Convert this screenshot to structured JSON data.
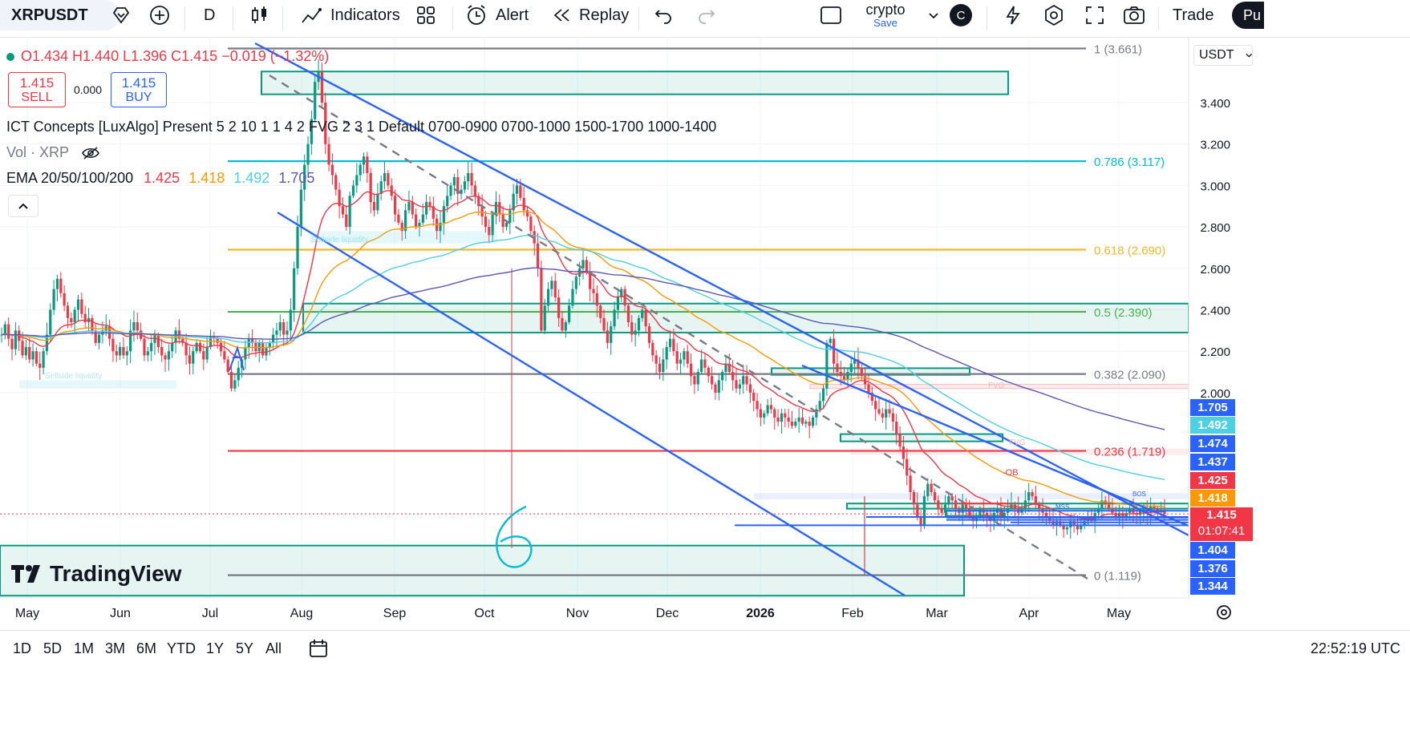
{
  "toolbar": {
    "symbol": "XRPUSDT",
    "interval": "D",
    "indicators": "Indicators",
    "alert": "Alert",
    "replay": "Replay",
    "layout_name": "crypto",
    "layout_sub": "Save",
    "profile_initial": "C",
    "trade": "Trade",
    "publish": "Pu"
  },
  "legend": {
    "ohlc": "O1.434 H1.440 L1.396 C1.415 −0.019 (−1.32%)",
    "sell_price": "1.415",
    "sell_label": "SELL",
    "spread": "0.000",
    "buy_price": "1.415",
    "buy_label": "BUY",
    "ict": "ICT Concepts [LuxAlgo] Present 5 2 10 1 1 4 2 FVG 2 3 1 Default 0700-0900 0700-1000 1500-1700 1000-1400",
    "vol": "Vol · XRP",
    "ema_label": "EMA 20/50/100/200",
    "ema20": "1.425",
    "ema50": "1.418",
    "ema100": "1.492",
    "ema200": "1.705"
  },
  "currency": "USDT",
  "colors": {
    "up": "#089981",
    "down": "#f23645",
    "ema20": "#f23645",
    "ema50": "#ff9800",
    "ema100": "#4dd0e1",
    "ema200": "#5b55b6",
    "channel": "#2962ff",
    "zone": "#089981",
    "fib_gray": "#787b86",
    "fib_cyan": "#00bcd4",
    "fib_gold": "#f2b824",
    "fib_green": "#4caf50",
    "fib_red": "#f23645"
  },
  "chart_data": {
    "type": "candlestick",
    "title": "XRPUSDT · D",
    "y_ticks": [
      3.4,
      3.2,
      3.0,
      2.8,
      2.6,
      2.4,
      2.2,
      2.0
    ],
    "y_tick_labels": [
      "3.400",
      "3.200",
      "3.000",
      "2.800",
      "2.600",
      "2.400",
      "2.200",
      "2.000"
    ],
    "x_labels": [
      "May",
      "Jun",
      "Jul",
      "Aug",
      "Sep",
      "Oct",
      "Nov",
      "Dec",
      "2026",
      "Feb",
      "Mar",
      "Apr",
      "May"
    ],
    "fib_levels": [
      {
        "ratio": "1",
        "price": 3.661,
        "label": "1 (3.661)",
        "color": "#787b86"
      },
      {
        "ratio": "0.786",
        "price": 3.117,
        "label": "0.786 (3.117)",
        "color": "#00bcd4"
      },
      {
        "ratio": "0.618",
        "price": 2.69,
        "label": "0.618 (2.690)",
        "color": "#f2b824"
      },
      {
        "ratio": "0.5",
        "price": 2.39,
        "label": "0.5 (2.390)",
        "color": "#4caf50"
      },
      {
        "ratio": "0.382",
        "price": 2.09,
        "label": "0.382 (2.090)",
        "color": "#787b86"
      },
      {
        "ratio": "0.236",
        "price": 1.719,
        "label": "0.236 (1.719)",
        "color": "#f23645"
      },
      {
        "ratio": "0",
        "price": 1.119,
        "label": "0 (1.119)",
        "color": "#787b86"
      }
    ],
    "price_labels": [
      {
        "value": "1.705",
        "color": "#2962ff"
      },
      {
        "value": "1.492",
        "color": "#4dd0e1"
      },
      {
        "value": "1.474",
        "color": "#2962ff"
      },
      {
        "value": "1.437",
        "color": "#2962ff"
      },
      {
        "value": "1.425",
        "color": "#f23645"
      },
      {
        "value": "1.418",
        "color": "#ff9800"
      },
      {
        "value": "1.404",
        "color": "#2962ff"
      },
      {
        "value": "1.376",
        "color": "#2962ff"
      },
      {
        "value": "1.344",
        "color": "#2962ff"
      }
    ],
    "last_price": "1.415",
    "countdown": "01:07:41",
    "annotations": [
      "Sellside liquidity",
      "Sellside liquidity",
      "FVG",
      "FVG",
      "-OB",
      "BOS",
      "MSS",
      "6"
    ],
    "closes": [
      2.28,
      2.33,
      2.26,
      2.21,
      2.3,
      2.25,
      2.18,
      2.22,
      2.16,
      2.2,
      2.14,
      2.12,
      2.2,
      2.28,
      2.4,
      2.5,
      2.55,
      2.48,
      2.42,
      2.36,
      2.34,
      2.4,
      2.45,
      2.38,
      2.34,
      2.36,
      2.3,
      2.24,
      2.28,
      2.3,
      2.32,
      2.26,
      2.2,
      2.18,
      2.22,
      2.18,
      2.2,
      2.3,
      2.34,
      2.3,
      2.26,
      2.18,
      2.2,
      2.24,
      2.28,
      2.22,
      2.18,
      2.16,
      2.2,
      2.24,
      2.3,
      2.26,
      2.24,
      2.18,
      2.14,
      2.2,
      2.24,
      2.2,
      2.16,
      2.22,
      2.27,
      2.26,
      2.24,
      2.2,
      2.16,
      2.1,
      2.02,
      2.06,
      2.12,
      2.16,
      2.22,
      2.26,
      2.24,
      2.2,
      2.24,
      2.18,
      2.22,
      2.24,
      2.28,
      2.3,
      2.34,
      2.28,
      2.3,
      2.4,
      2.6,
      2.8,
      2.98,
      3.1,
      3.2,
      3.32,
      3.5,
      3.55,
      3.4,
      3.2,
      3.1,
      3.05,
      2.98,
      2.9,
      2.86,
      2.8,
      2.95,
      3.0,
      3.05,
      3.1,
      3.14,
      3.06,
      2.92,
      2.88,
      2.96,
      3.02,
      3.06,
      3.0,
      2.95,
      2.86,
      2.82,
      2.78,
      2.88,
      2.92,
      2.86,
      2.8,
      2.82,
      2.86,
      2.92,
      2.9,
      2.84,
      2.78,
      2.82,
      2.9,
      2.95,
      3.0,
      3.04,
      2.96,
      2.98,
      3.02,
      3.06,
      3.0,
      2.95,
      2.9,
      2.85,
      2.8,
      2.76,
      2.86,
      2.92,
      2.86,
      2.8,
      2.82,
      2.88,
      2.96,
      3.0,
      2.94,
      2.88,
      2.85,
      2.78,
      2.72,
      2.6,
      2.3,
      2.42,
      2.5,
      2.54,
      2.46,
      2.36,
      2.3,
      2.34,
      2.42,
      2.5,
      2.56,
      2.6,
      2.64,
      2.58,
      2.5,
      2.48,
      2.42,
      2.36,
      2.3,
      2.24,
      2.32,
      2.4,
      2.46,
      2.5,
      2.42,
      2.34,
      2.28,
      2.3,
      2.36,
      2.4,
      2.32,
      2.24,
      2.18,
      2.14,
      2.1,
      2.16,
      2.22,
      2.26,
      2.2,
      2.14,
      2.16,
      2.2,
      2.14,
      2.08,
      2.04,
      2.1,
      2.16,
      2.12,
      2.08,
      2.04,
      2.0,
      2.06,
      2.1,
      2.14,
      2.1,
      2.06,
      2.02,
      2.04,
      2.08,
      2.04,
      2.0,
      1.96,
      1.92,
      1.88,
      1.9,
      1.94,
      1.92,
      1.88,
      1.86,
      1.9,
      1.88,
      1.86,
      1.84,
      1.86,
      1.88,
      1.85,
      1.86,
      1.84,
      1.88,
      1.92,
      1.96,
      2.02,
      2.24,
      2.26,
      2.14,
      2.1,
      2.08,
      2.06,
      2.1,
      2.14,
      2.16,
      2.12,
      2.08,
      2.04,
      2.0,
      1.96,
      1.92,
      1.9,
      1.88,
      1.92,
      1.9,
      1.86,
      1.8,
      1.74,
      1.68,
      1.6,
      1.52,
      1.46,
      1.4,
      1.36,
      1.5,
      1.56,
      1.52,
      1.48,
      1.44,
      1.42,
      1.46,
      1.5,
      1.48,
      1.44,
      1.42,
      1.46,
      1.44,
      1.4,
      1.38,
      1.4,
      1.44,
      1.42,
      1.4,
      1.38,
      1.42,
      1.44,
      1.4,
      1.42,
      1.44,
      1.46,
      1.44,
      1.42,
      1.44,
      1.48,
      1.52,
      1.5,
      1.46,
      1.44,
      1.42,
      1.4,
      1.38,
      1.36,
      1.38,
      1.36,
      1.34,
      1.35,
      1.38,
      1.36,
      1.34,
      1.36,
      1.38,
      1.4,
      1.38,
      1.42,
      1.44,
      1.48,
      1.46,
      1.44,
      1.42,
      1.4,
      1.42,
      1.4,
      1.42,
      1.44,
      1.42,
      1.41,
      1.43,
      1.44,
      1.42,
      1.45,
      1.44,
      1.43,
      1.434,
      1.415
    ]
  },
  "range_buttons": [
    "1D",
    "5D",
    "1M",
    "3M",
    "6M",
    "YTD",
    "1Y",
    "5Y",
    "All"
  ],
  "clock": "22:52:19 UTC",
  "brand": "TradingView"
}
